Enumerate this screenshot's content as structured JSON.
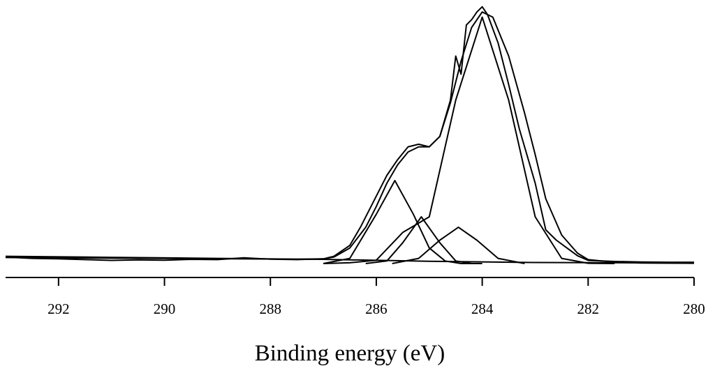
{
  "chart_data": {
    "type": "line",
    "title": "",
    "xlabel": "Binding energy (eV)",
    "ylabel": "",
    "xlim": [
      293,
      280
    ],
    "x_reversed": true,
    "ylim": [
      0,
      1
    ],
    "y_axis_shown": false,
    "x_ticks": [
      292,
      290,
      288,
      286,
      284,
      282,
      280
    ],
    "x_tick_labels": [
      "292",
      "290",
      "288",
      "286",
      "284",
      "282",
      "280"
    ],
    "grid": false,
    "legend": "none",
    "series": [
      {
        "role": "raw-spectrum",
        "x": [
          293,
          292.5,
          292,
          291.5,
          291,
          290.5,
          290,
          289.5,
          289,
          288.5,
          288,
          287.5,
          287,
          286.8,
          286.5,
          286.3,
          286,
          285.8,
          285.6,
          285.4,
          285.2,
          285,
          284.8,
          284.6,
          284.5,
          284.4,
          284.3,
          284.2,
          284.1,
          284,
          283.9,
          283.7,
          283.5,
          283.3,
          283,
          282.8,
          282.6,
          282.4,
          282.2,
          282,
          281.5,
          281,
          280.5,
          280
        ],
        "y": [
          0.025,
          0.02,
          0.018,
          0.015,
          0.012,
          0.014,
          0.013,
          0.016,
          0.015,
          0.022,
          0.017,
          0.015,
          0.018,
          0.028,
          0.07,
          0.14,
          0.26,
          0.34,
          0.4,
          0.45,
          0.46,
          0.45,
          0.49,
          0.63,
          0.8,
          0.73,
          0.92,
          0.94,
          0.97,
          0.99,
          0.96,
          0.85,
          0.69,
          0.52,
          0.31,
          0.13,
          0.09,
          0.06,
          0.03,
          0.012,
          0.008,
          0.006,
          0.005,
          0.005
        ]
      },
      {
        "role": "envelope-fit",
        "x": [
          293,
          291,
          289,
          287.5,
          287,
          286.8,
          286.5,
          286.2,
          286,
          285.8,
          285.6,
          285.4,
          285.2,
          285,
          284.8,
          284.6,
          284.4,
          284.2,
          284,
          283.8,
          283.5,
          283.2,
          283,
          282.8,
          282.5,
          282.2,
          282,
          281.5,
          281,
          280
        ],
        "y": [
          0.028,
          0.024,
          0.02,
          0.017,
          0.018,
          0.025,
          0.06,
          0.14,
          0.22,
          0.31,
          0.38,
          0.43,
          0.45,
          0.45,
          0.49,
          0.62,
          0.78,
          0.91,
          0.97,
          0.95,
          0.8,
          0.58,
          0.42,
          0.25,
          0.11,
          0.04,
          0.015,
          0.005,
          0.002,
          0.001
        ]
      },
      {
        "role": "component-peak",
        "center": 284.0,
        "height": 0.95,
        "sigma": 0.55,
        "x": [
          287,
          286.5,
          286,
          285.5,
          285,
          284.5,
          284,
          283.5,
          283,
          282.5,
          282,
          281.5
        ],
        "y": [
          0.0,
          0.003,
          0.013,
          0.12,
          0.18,
          0.63,
          0.95,
          0.63,
          0.18,
          0.02,
          0.001,
          0.0
        ]
      },
      {
        "role": "component-peak",
        "center": 285.65,
        "height": 0.32,
        "sigma": 0.35,
        "x": [
          287,
          286.5,
          286,
          285.65,
          285.3,
          285,
          284.7,
          284.4,
          284
        ],
        "y": [
          0.0,
          0.02,
          0.19,
          0.32,
          0.19,
          0.06,
          0.01,
          0.0,
          0.0
        ]
      },
      {
        "role": "component-peak",
        "center": 285.15,
        "height": 0.18,
        "sigma": 0.27,
        "x": [
          286.2,
          285.8,
          285.5,
          285.15,
          284.8,
          284.5,
          284.2
        ],
        "y": [
          0.0,
          0.01,
          0.08,
          0.18,
          0.08,
          0.01,
          0.0
        ]
      },
      {
        "role": "component-peak",
        "center": 284.45,
        "height": 0.14,
        "sigma": 0.38,
        "x": [
          285.7,
          285.2,
          284.8,
          284.45,
          284.1,
          283.7,
          283.2
        ],
        "y": [
          0.0,
          0.02,
          0.09,
          0.14,
          0.09,
          0.02,
          0.0
        ]
      },
      {
        "role": "baseline",
        "x": [
          293,
          287,
          285,
          283,
          280
        ],
        "y": [
          0.023,
          0.016,
          0.009,
          0.004,
          0.002
        ]
      }
    ]
  }
}
